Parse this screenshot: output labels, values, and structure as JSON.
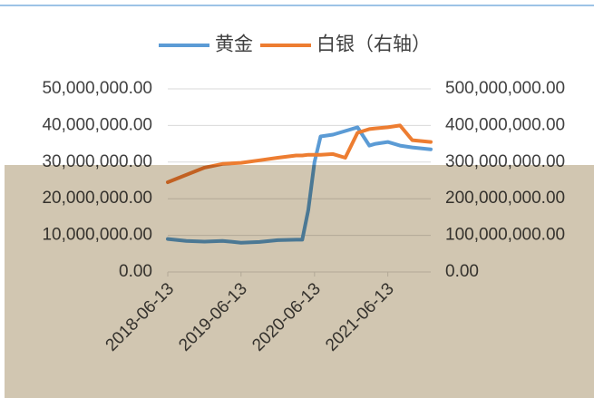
{
  "chart_data": {
    "type": "line",
    "x": [
      "2018-06-13",
      "2018-09-13",
      "2018-12-13",
      "2019-03-13",
      "2019-06-13",
      "2019-09-13",
      "2019-12-13",
      "2020-03-13",
      "2020-04-13",
      "2020-05-13",
      "2020-06-13",
      "2020-07-13",
      "2020-09-13",
      "2020-11-13",
      "2021-01-13",
      "2021-03-13",
      "2021-04-13",
      "2021-06-13",
      "2021-08-13",
      "2021-10-13",
      "2022-01-13"
    ],
    "series": [
      {
        "name": "黄金",
        "color": "#5b9bd5",
        "axis": "y",
        "values": [
          9000000,
          8500000,
          8300000,
          8500000,
          8000000,
          8200000,
          8700000,
          8800000,
          8800000,
          17000000,
          30000000,
          37000000,
          37500000,
          38500000,
          39500000,
          34500000,
          35000000,
          35500000,
          34500000,
          34000000,
          33500000
        ]
      },
      {
        "name": "白银（右轴）",
        "color": "#ed7d31",
        "axis": "y2",
        "values": [
          245000000,
          265000000,
          285000000,
          295000000,
          298000000,
          305000000,
          312000000,
          318000000,
          318000000,
          320000000,
          320000000,
          320000000,
          322000000,
          312000000,
          380000000,
          390000000,
          392000000,
          395000000,
          400000000,
          360000000,
          355000000
        ]
      }
    ],
    "xlim": [
      "2018-06-13",
      "2022-01-13"
    ],
    "xticks": [
      "2018-06-13",
      "2019-06-13",
      "2020-06-13",
      "2021-06-13"
    ],
    "ylim": [
      0,
      50000000
    ],
    "yticks": [
      {
        "value": 0,
        "label": "0.00"
      },
      {
        "value": 10000000,
        "label": "10,000,000.00"
      },
      {
        "value": 20000000,
        "label": "20,000,000.00"
      },
      {
        "value": 30000000,
        "label": "30,000,000.00"
      },
      {
        "value": 40000000,
        "label": "40,000,000.00"
      },
      {
        "value": 50000000,
        "label": "50,000,000.00"
      }
    ],
    "y2lim": [
      0,
      500000000
    ],
    "y2ticks": [
      {
        "value": 0,
        "label": "0.00"
      },
      {
        "value": 100000000,
        "label": "100,000,000.00"
      },
      {
        "value": 200000000,
        "label": "200,000,000.00"
      },
      {
        "value": 300000000,
        "label": "300,000,000.00"
      },
      {
        "value": 400000000,
        "label": "400,000,000.00"
      },
      {
        "value": 500000000,
        "label": "500,000,000.00"
      }
    ],
    "grid": true,
    "legend": "top"
  }
}
